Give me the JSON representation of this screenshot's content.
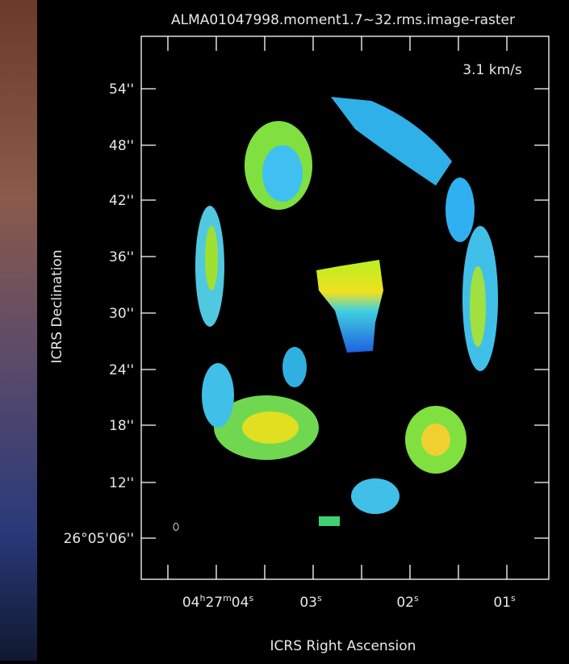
{
  "header": {
    "title": "ALMA01047998.moment1.7~32.rms.image-raster"
  },
  "annotation": "3.1 km/s",
  "axes": {
    "x": {
      "label": "ICRS Right Ascension",
      "ticks": [
        [
          "04",
          "h",
          "27",
          "m",
          "04",
          "s"
        ],
        [
          "03",
          "s"
        ],
        [
          "02",
          "s"
        ],
        [
          "01",
          "s"
        ]
      ]
    },
    "y": {
      "label": "ICRS Declination",
      "ticks": [
        "54''",
        "48''",
        "42''",
        "36''",
        "30''",
        "24''",
        "18''",
        "12''",
        "26°05'06''"
      ]
    }
  }
}
